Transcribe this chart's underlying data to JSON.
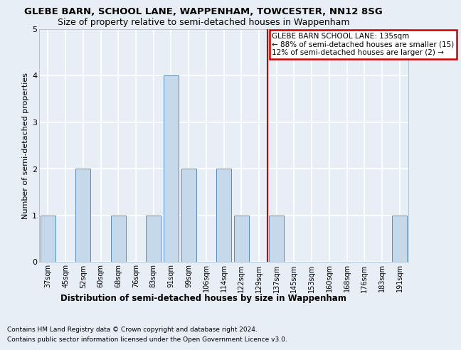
{
  "title": "GLEBE BARN, SCHOOL LANE, WAPPENHAM, TOWCESTER, NN12 8SG",
  "subtitle": "Size of property relative to semi-detached houses in Wappenham",
  "xlabel_bottom": "Distribution of semi-detached houses by size in Wappenham",
  "ylabel": "Number of semi-detached properties",
  "categories": [
    "37sqm",
    "45sqm",
    "52sqm",
    "60sqm",
    "68sqm",
    "76sqm",
    "83sqm",
    "91sqm",
    "99sqm",
    "106sqm",
    "114sqm",
    "122sqm",
    "129sqm",
    "137sqm",
    "145sqm",
    "153sqm",
    "160sqm",
    "168sqm",
    "176sqm",
    "183sqm",
    "191sqm"
  ],
  "values": [
    1,
    0,
    2,
    0,
    1,
    0,
    1,
    4,
    2,
    0,
    2,
    1,
    0,
    1,
    0,
    0,
    0,
    0,
    0,
    0,
    1
  ],
  "bar_color": "#c6d9ea",
  "bar_edge_color": "#5b8db8",
  "ref_line_index": 12.5,
  "ref_line_color": "#cc0000",
  "annot_line1": "GLEBE BARN SCHOOL LANE: 135sqm",
  "annot_line2": "← 88% of semi-detached houses are smaller (15)",
  "annot_line3": "12% of semi-detached houses are larger (2) →",
  "annot_box_fc": "#ffffff",
  "annot_box_ec": "#cc0000",
  "ylim": [
    0,
    5
  ],
  "yticks": [
    0,
    1,
    2,
    3,
    4,
    5
  ],
  "bg_color": "#e8eef5",
  "grid_color": "#ffffff",
  "title_fontsize": 9.5,
  "subtitle_fontsize": 9,
  "axis_label_fontsize": 8,
  "tick_fontsize": 7,
  "annot_fontsize": 7.5,
  "footnote_fontsize": 6.5,
  "footnote1": "Contains HM Land Registry data © Crown copyright and database right 2024.",
  "footnote2": "Contains public sector information licensed under the Open Government Licence v3.0."
}
